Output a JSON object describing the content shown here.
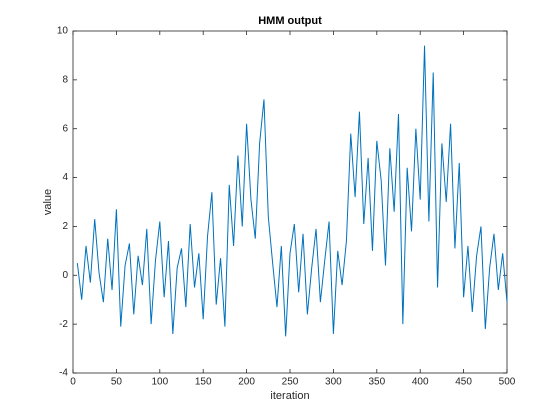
{
  "chart_data": {
    "type": "line",
    "title": "HMM output",
    "xlabel": "iteration",
    "ylabel": "value",
    "x": [
      5,
      10,
      15,
      20,
      25,
      30,
      35,
      40,
      45,
      50,
      55,
      60,
      65,
      70,
      75,
      80,
      85,
      90,
      95,
      100,
      105,
      110,
      115,
      120,
      125,
      130,
      135,
      140,
      145,
      150,
      155,
      160,
      165,
      170,
      175,
      180,
      185,
      190,
      195,
      200,
      205,
      210,
      215,
      220,
      225,
      230,
      235,
      240,
      245,
      250,
      255,
      260,
      265,
      270,
      275,
      280,
      285,
      290,
      295,
      300,
      305,
      310,
      315,
      320,
      325,
      330,
      335,
      340,
      345,
      350,
      355,
      360,
      365,
      370,
      375,
      380,
      385,
      390,
      395,
      400,
      405,
      410,
      415,
      420,
      425,
      430,
      435,
      440,
      445,
      450,
      455,
      460,
      465,
      470,
      475,
      480,
      485,
      490,
      495,
      500
    ],
    "series": [
      {
        "name": "value",
        "color": "#0072bd",
        "values": [
          0.5,
          -1.0,
          1.2,
          -0.3,
          2.3,
          0.1,
          -1.1,
          1.5,
          -0.6,
          2.7,
          -2.1,
          0.4,
          1.3,
          -1.6,
          0.8,
          -0.4,
          1.9,
          -2.0,
          0.6,
          2.2,
          -0.9,
          1.4,
          -2.4,
          0.3,
          1.1,
          -1.3,
          2.1,
          -0.5,
          0.9,
          -1.8,
          1.6,
          3.4,
          -1.2,
          0.7,
          -2.1,
          3.7,
          1.2,
          4.9,
          2.0,
          6.2,
          3.1,
          1.5,
          5.4,
          7.2,
          2.4,
          0.5,
          -1.3,
          1.2,
          -2.5,
          0.9,
          2.1,
          -0.7,
          1.7,
          -1.6,
          0.3,
          1.9,
          -1.1,
          0.6,
          2.2,
          -2.4,
          1.0,
          -0.4,
          1.4,
          5.8,
          3.2,
          6.7,
          2.1,
          4.8,
          1.0,
          5.5,
          3.9,
          0.4,
          5.2,
          2.6,
          6.6,
          -2.0,
          4.4,
          1.8,
          6.0,
          3.1,
          9.4,
          2.2,
          8.3,
          -0.5,
          5.4,
          3.0,
          6.2,
          1.1,
          4.6,
          -0.9,
          1.2,
          -1.5,
          0.8,
          2.0,
          -2.2,
          0.3,
          1.7,
          -0.6,
          0.9,
          -1.1
        ]
      }
    ],
    "xlim": [
      0,
      500
    ],
    "xticks": [
      0,
      50,
      100,
      150,
      200,
      250,
      300,
      350,
      400,
      450,
      500
    ],
    "ylim": [
      -4,
      10
    ],
    "yticks": [
      -4,
      -2,
      0,
      2,
      4,
      6,
      8,
      10
    ]
  }
}
